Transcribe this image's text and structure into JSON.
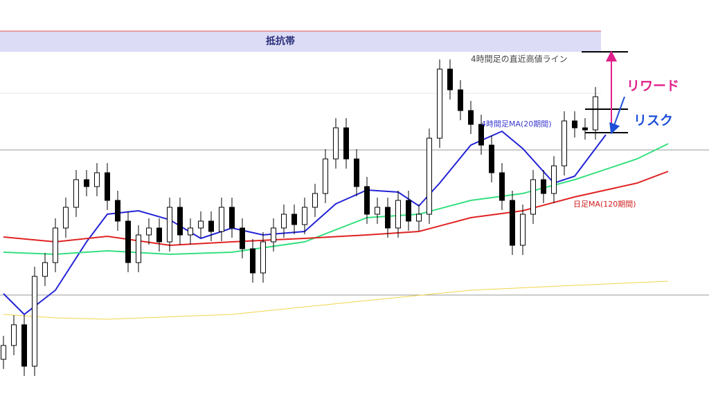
{
  "chart_data": {
    "type": "candlestick",
    "xlim": [
      -0.333,
      67.933
    ],
    "ylim": [
      0,
      576
    ],
    "up_color": "#ffffff",
    "down_color": "#000000",
    "open": [
      56,
      76,
      106,
      46,
      176,
      196,
      246,
      276,
      316,
      306,
      326,
      286,
      256,
      196,
      236,
      246,
      226,
      276,
      236,
      246,
      256,
      241,
      276,
      246,
      216,
      181,
      226,
      246,
      266,
      251,
      276,
      296,
      346,
      391,
      346,
      306,
      266,
      276,
      246,
      286,
      256,
      266,
      376,
      476,
      446,
      416,
      396,
      366,
      326,
      286,
      221,
      266,
      316,
      296,
      336,
      401,
      391,
      388
    ],
    "high": [
      90,
      120,
      120,
      190,
      210,
      260,
      290,
      330,
      330,
      340,
      340,
      300,
      270,
      250,
      260,
      260,
      290,
      290,
      260,
      270,
      270,
      290,
      290,
      260,
      230,
      240,
      260,
      280,
      280,
      290,
      310,
      360,
      405,
      405,
      360,
      320,
      290,
      290,
      300,
      300,
      280,
      390,
      490,
      490,
      460,
      430,
      410,
      380,
      340,
      300,
      280,
      330,
      330,
      350,
      415,
      415,
      405,
      450
    ],
    "low": [
      42,
      62,
      32,
      32,
      162,
      182,
      232,
      262,
      292,
      292,
      272,
      242,
      182,
      182,
      222,
      212,
      212,
      222,
      222,
      232,
      227,
      227,
      232,
      202,
      167,
      167,
      212,
      232,
      237,
      237,
      262,
      282,
      332,
      332,
      292,
      252,
      252,
      232,
      232,
      242,
      242,
      252,
      362,
      432,
      402,
      382,
      352,
      312,
      272,
      207,
      207,
      252,
      282,
      282,
      322,
      377,
      374,
      374
    ],
    "close": [
      76,
      106,
      46,
      176,
      196,
      246,
      276,
      316,
      306,
      326,
      286,
      256,
      196,
      236,
      246,
      226,
      276,
      236,
      246,
      256,
      241,
      276,
      246,
      216,
      181,
      226,
      246,
      266,
      251,
      276,
      296,
      346,
      391,
      346,
      306,
      266,
      276,
      246,
      286,
      256,
      266,
      376,
      476,
      446,
      416,
      396,
      366,
      326,
      286,
      221,
      266,
      316,
      296,
      336,
      401,
      391,
      388,
      436
    ],
    "series": [
      {
        "name": "4時間足MA(20期間)",
        "color": "#2323d6",
        "x": [
          0,
          2,
          5,
          8,
          10,
          13,
          16,
          19,
          22,
          25,
          29,
          32,
          35,
          38,
          40,
          42,
          45,
          48,
          50,
          53,
          55,
          58
        ],
        "values": [
          151,
          121,
          156,
          226,
          266,
          271,
          258,
          231,
          246,
          236,
          241,
          281,
          301,
          298,
          278,
          311,
          366,
          386,
          361,
          311,
          321,
          381
        ]
      },
      {
        "color": "#33e07f",
        "x": [
          0,
          5,
          10,
          16,
          22,
          29,
          35,
          40,
          45,
          50,
          55,
          61,
          64
        ],
        "values": [
          211,
          208,
          213,
          208,
          211,
          226,
          261,
          266,
          286,
          296,
          316,
          346,
          368
        ]
      },
      {
        "name": "日足MA(120期間)",
        "color": "#e02222",
        "x": [
          0,
          5,
          10,
          16,
          22,
          29,
          35,
          40,
          45,
          50,
          55,
          61,
          64
        ],
        "values": [
          233,
          226,
          234,
          221,
          226,
          231,
          236,
          241,
          261,
          271,
          291,
          311,
          328
        ]
      },
      {
        "color": "#f2d44a",
        "x": [
          0,
          5,
          10,
          22,
          35,
          45,
          55,
          64
        ],
        "values": [
          121,
          116,
          114,
          121,
          141,
          156,
          163,
          169
        ]
      }
    ],
    "resistance_label": "抵抗帯",
    "resistance_band": [
      501,
      531
    ],
    "levels": [
      441,
      359,
      149
    ],
    "high_line_label": "4時間足の直近高値ライン",
    "trade_levels": [
      501,
      418,
      384
    ],
    "reward_label": "リワード",
    "risk_label": "リスク"
  }
}
